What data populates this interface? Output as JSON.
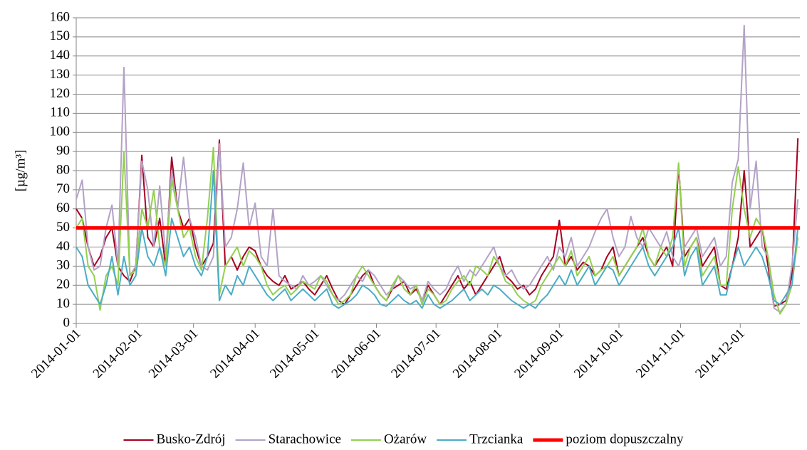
{
  "chart_data": {
    "type": "line",
    "ylabel": "[µg/m³]",
    "xlim": [
      "2014-01-01",
      "2014-12-31"
    ],
    "xticks": [
      "2014-01-01",
      "2014-02-01",
      "2014-03-01",
      "2014-04-01",
      "2014-05-01",
      "2014-06-01",
      "2014-07-01",
      "2014-08-01",
      "2014-09-01",
      "2014-10-01",
      "2014-11-01",
      "2014-12-01"
    ],
    "ylim": [
      0,
      160
    ],
    "yticks": [
      0,
      10,
      20,
      30,
      40,
      50,
      60,
      70,
      80,
      90,
      100,
      110,
      120,
      130,
      140,
      150,
      160
    ],
    "x": [
      "2014-01-01",
      "2014-01-04",
      "2014-01-07",
      "2014-01-10",
      "2014-01-13",
      "2014-01-16",
      "2014-01-19",
      "2014-01-22",
      "2014-01-25",
      "2014-01-28",
      "2014-01-31",
      "2014-02-03",
      "2014-02-06",
      "2014-02-09",
      "2014-02-12",
      "2014-02-15",
      "2014-02-18",
      "2014-02-21",
      "2014-02-24",
      "2014-02-27",
      "2014-03-02",
      "2014-03-05",
      "2014-03-08",
      "2014-03-11",
      "2014-03-14",
      "2014-03-17",
      "2014-03-20",
      "2014-03-23",
      "2014-03-26",
      "2014-03-29",
      "2014-04-01",
      "2014-04-04",
      "2014-04-07",
      "2014-04-10",
      "2014-04-13",
      "2014-04-16",
      "2014-04-19",
      "2014-04-22",
      "2014-04-25",
      "2014-04-28",
      "2014-05-01",
      "2014-05-04",
      "2014-05-07",
      "2014-05-10",
      "2014-05-13",
      "2014-05-16",
      "2014-05-19",
      "2014-05-22",
      "2014-05-25",
      "2014-05-28",
      "2014-05-31",
      "2014-06-03",
      "2014-06-06",
      "2014-06-09",
      "2014-06-12",
      "2014-06-15",
      "2014-06-18",
      "2014-06-21",
      "2014-06-24",
      "2014-06-27",
      "2014-06-30",
      "2014-07-03",
      "2014-07-06",
      "2014-07-09",
      "2014-07-12",
      "2014-07-15",
      "2014-07-18",
      "2014-07-21",
      "2014-07-24",
      "2014-07-27",
      "2014-07-30",
      "2014-08-02",
      "2014-08-05",
      "2014-08-08",
      "2014-08-11",
      "2014-08-14",
      "2014-08-17",
      "2014-08-20",
      "2014-08-23",
      "2014-08-26",
      "2014-08-29",
      "2014-09-01",
      "2014-09-04",
      "2014-09-07",
      "2014-09-10",
      "2014-09-13",
      "2014-09-16",
      "2014-09-19",
      "2014-09-22",
      "2014-09-25",
      "2014-09-28",
      "2014-10-01",
      "2014-10-04",
      "2014-10-07",
      "2014-10-10",
      "2014-10-13",
      "2014-10-16",
      "2014-10-19",
      "2014-10-22",
      "2014-10-25",
      "2014-10-28",
      "2014-10-31",
      "2014-11-03",
      "2014-11-06",
      "2014-11-09",
      "2014-11-12",
      "2014-11-15",
      "2014-11-18",
      "2014-11-21",
      "2014-11-24",
      "2014-11-27",
      "2014-11-30",
      "2014-12-03",
      "2014-12-06",
      "2014-12-09",
      "2014-12-12",
      "2014-12-15",
      "2014-12-18",
      "2014-12-21",
      "2014-12-24",
      "2014-12-27",
      "2014-12-30"
    ],
    "series": [
      {
        "name": "Busko-Zdrój",
        "color": "#a50021",
        "values": [
          60,
          55,
          40,
          30,
          35,
          45,
          50,
          30,
          25,
          22,
          30,
          88,
          45,
          40,
          55,
          30,
          87,
          60,
          50,
          55,
          40,
          30,
          35,
          42,
          96,
          30,
          35,
          28,
          35,
          40,
          38,
          30,
          25,
          22,
          20,
          25,
          18,
          20,
          22,
          18,
          15,
          20,
          25,
          18,
          12,
          10,
          15,
          20,
          25,
          28,
          20,
          15,
          12,
          18,
          20,
          22,
          15,
          18,
          12,
          20,
          15,
          10,
          15,
          20,
          25,
          18,
          22,
          15,
          20,
          25,
          30,
          35,
          25,
          22,
          18,
          20,
          15,
          18,
          25,
          30,
          35,
          54,
          30,
          35,
          28,
          32,
          30,
          25,
          28,
          35,
          40,
          25,
          30,
          35,
          40,
          45,
          35,
          30,
          35,
          40,
          30,
          83,
          35,
          40,
          45,
          30,
          35,
          40,
          20,
          18,
          30,
          45,
          80,
          40,
          45,
          50,
          30,
          9,
          10,
          12,
          25,
          97
        ]
      },
      {
        "name": "Starachowice",
        "color": "#b3a2c7",
        "values": [
          65,
          75,
          40,
          28,
          30,
          50,
          62,
          30,
          134,
          25,
          30,
          85,
          70,
          40,
          72,
          35,
          80,
          60,
          87,
          55,
          45,
          30,
          28,
          35,
          94,
          40,
          45,
          60,
          84,
          50,
          63,
          35,
          30,
          60,
          25,
          22,
          20,
          18,
          25,
          20,
          22,
          25,
          20,
          15,
          12,
          15,
          20,
          25,
          22,
          28,
          25,
          20,
          15,
          18,
          25,
          22,
          18,
          20,
          12,
          22,
          18,
          15,
          18,
          25,
          30,
          22,
          28,
          25,
          30,
          35,
          40,
          30,
          25,
          28,
          22,
          18,
          20,
          25,
          30,
          35,
          28,
          40,
          35,
          45,
          30,
          35,
          40,
          48,
          55,
          60,
          45,
          35,
          40,
          56,
          45,
          40,
          50,
          45,
          40,
          48,
          35,
          30,
          40,
          45,
          50,
          35,
          40,
          45,
          30,
          35,
          74,
          86,
          156,
          60,
          85,
          40,
          35,
          8,
          6,
          10,
          30,
          65
        ]
      },
      {
        "name": "Ożarów",
        "color": "#92d050",
        "values": [
          50,
          55,
          30,
          25,
          7,
          25,
          30,
          20,
          90,
          25,
          28,
          60,
          50,
          70,
          40,
          30,
          75,
          60,
          45,
          50,
          35,
          28,
          55,
          92,
          15,
          30,
          35,
          40,
          30,
          38,
          35,
          30,
          20,
          15,
          18,
          20,
          15,
          18,
          22,
          20,
          18,
          25,
          22,
          15,
          10,
          12,
          15,
          25,
          30,
          25,
          20,
          15,
          12,
          20,
          25,
          18,
          15,
          20,
          10,
          18,
          15,
          10,
          12,
          18,
          22,
          25,
          20,
          30,
          28,
          25,
          35,
          30,
          22,
          20,
          15,
          12,
          10,
          12,
          20,
          25,
          30,
          35,
          30,
          38,
          25,
          30,
          35,
          25,
          28,
          30,
          35,
          25,
          30,
          35,
          40,
          50,
          35,
          30,
          40,
          35,
          45,
          84,
          30,
          40,
          45,
          25,
          30,
          35,
          20,
          20,
          60,
          82,
          60,
          45,
          55,
          50,
          35,
          15,
          5,
          10,
          20,
          45
        ]
      },
      {
        "name": "Trzcianka",
        "color": "#4bacc6",
        "values": [
          40,
          35,
          20,
          15,
          10,
          20,
          35,
          15,
          35,
          20,
          25,
          50,
          35,
          30,
          40,
          25,
          55,
          45,
          35,
          40,
          30,
          25,
          35,
          80,
          12,
          20,
          15,
          25,
          20,
          30,
          25,
          20,
          15,
          12,
          15,
          18,
          12,
          15,
          18,
          15,
          12,
          15,
          18,
          10,
          8,
          10,
          12,
          15,
          20,
          18,
          15,
          10,
          9,
          12,
          15,
          12,
          10,
          12,
          8,
          15,
          10,
          8,
          10,
          12,
          15,
          18,
          12,
          15,
          18,
          15,
          20,
          18,
          15,
          12,
          10,
          8,
          10,
          8,
          12,
          15,
          20,
          25,
          20,
          28,
          20,
          25,
          30,
          20,
          25,
          30,
          28,
          20,
          25,
          30,
          35,
          40,
          30,
          25,
          30,
          35,
          40,
          50,
          25,
          35,
          40,
          20,
          25,
          30,
          15,
          15,
          30,
          40,
          30,
          35,
          40,
          35,
          25,
          12,
          10,
          15,
          20,
          50
        ]
      }
    ],
    "reference_line": {
      "name": "poziom dopuszczalny",
      "value": 50,
      "color": "#ff0000"
    }
  }
}
